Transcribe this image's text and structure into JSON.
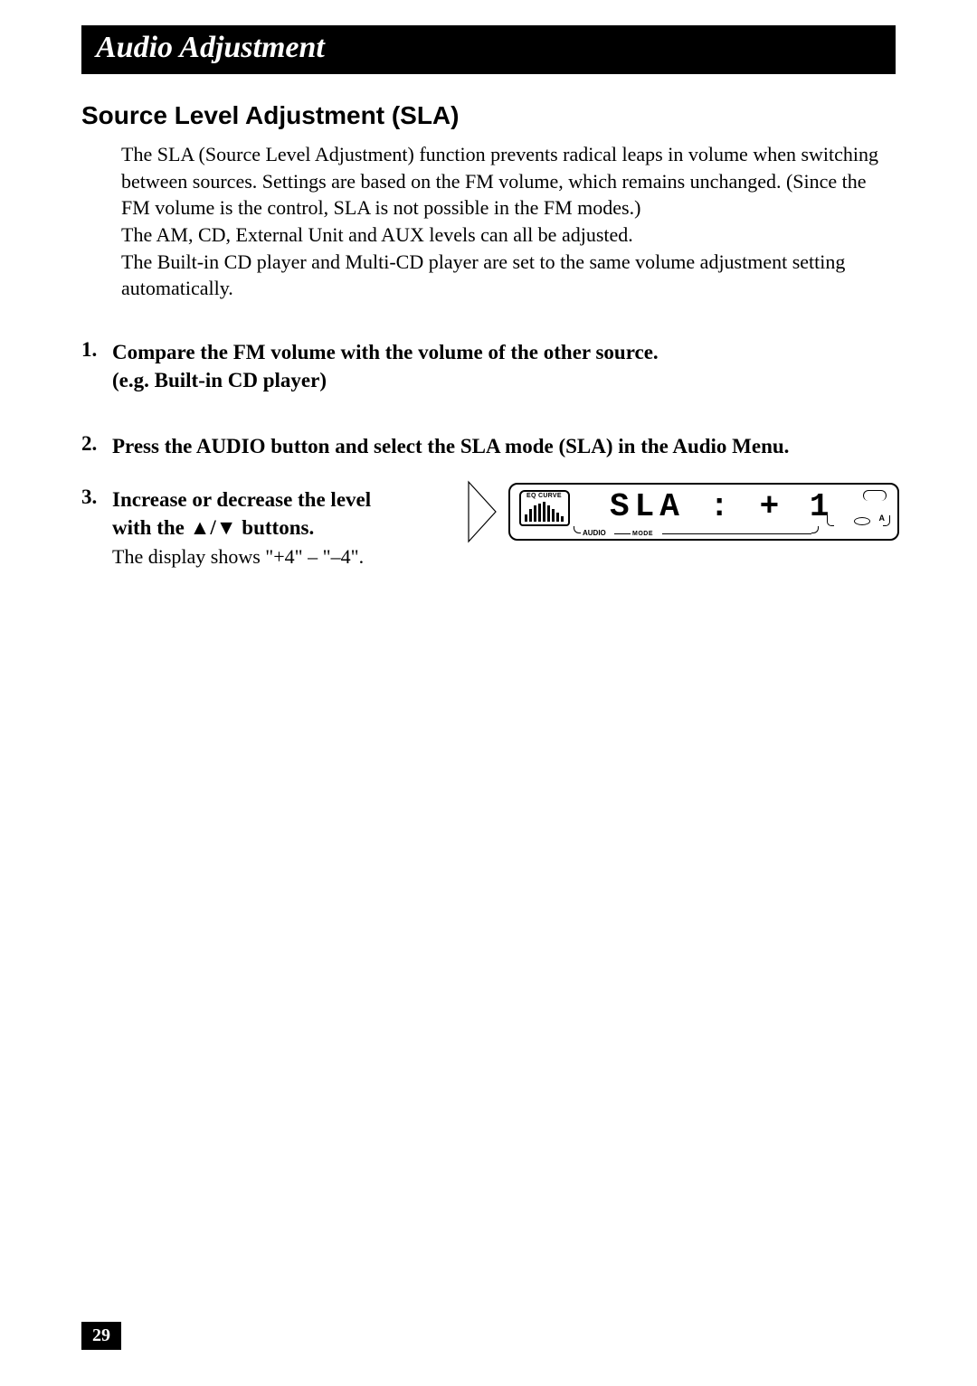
{
  "header": {
    "title": "Audio Adjustment"
  },
  "section": {
    "title": "Source Level Adjustment (SLA)"
  },
  "intro": {
    "p1": "The SLA (Source Level Adjustment) function prevents radical leaps in volume when switching between sources. Settings are based on the FM volume, which remains unchanged. (Since the FM volume is the control, SLA is not possible in the FM modes.)",
    "p2": "The AM, CD, External Unit and AUX levels can all be adjusted.",
    "p3": "The Built-in CD player and Multi-CD player are set to the same volume adjustment setting automatically."
  },
  "steps": {
    "s1": {
      "num": "1.",
      "title": "Compare the FM volume with the volume of the other source.",
      "title2": "(e.g. Built-in CD player)"
    },
    "s2": {
      "num": "2.",
      "title": "Press the AUDIO button and select the SLA mode (SLA) in the Audio Menu."
    },
    "s3": {
      "num": "3.",
      "title_a": "Increase or decrease the level",
      "title_b_pre": "with the ",
      "title_b_post": " buttons.",
      "triangle_up": "▲",
      "triangle_sep": "/",
      "triangle_down": "▼",
      "sub": "The display shows \"+4\" – \"–4\"."
    }
  },
  "display": {
    "eq_label": "EQ CURVE",
    "main_text": "SLA  : + 1",
    "audio_label": "AUDIO",
    "mode_label": "MODE",
    "a_label": "A",
    "eq_bar_heights": [
      8,
      14,
      18,
      20,
      22,
      18,
      14,
      10,
      6
    ],
    "bar_color": "#000000",
    "border_color": "#000000",
    "bg_color": "#ffffff"
  },
  "page_number": "29",
  "colors": {
    "black": "#000000",
    "white": "#ffffff"
  }
}
